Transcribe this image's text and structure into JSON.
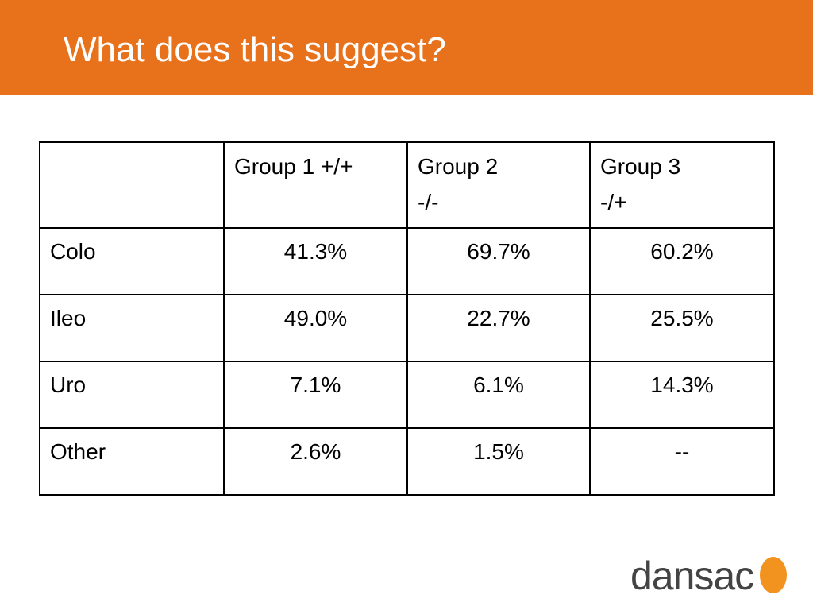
{
  "slide": {
    "title": "What does this suggest?"
  },
  "table": {
    "headers": [
      {
        "line1": "",
        "line2": ""
      },
      {
        "line1": "Group 1 +/+",
        "line2": ""
      },
      {
        "line1": "Group 2",
        "line2": "-/-"
      },
      {
        "line1": "Group 3",
        "line2": "-/+"
      }
    ],
    "rows": [
      {
        "label": "Colo",
        "cells": [
          "41.3%",
          "69.7%",
          "60.2%"
        ]
      },
      {
        "label": "Ileo",
        "cells": [
          "49.0%",
          "22.7%",
          "25.5%"
        ]
      },
      {
        "label": "Uro",
        "cells": [
          "7.1%",
          "6.1%",
          "14.3%"
        ]
      },
      {
        "label": "Other",
        "cells": [
          "2.6%",
          "1.5%",
          "--"
        ]
      }
    ]
  },
  "logo": {
    "text": "dansac",
    "mark_color": "#f2931f"
  },
  "colors": {
    "header_bar": "#e8711c",
    "title_text": "#ffffff"
  }
}
